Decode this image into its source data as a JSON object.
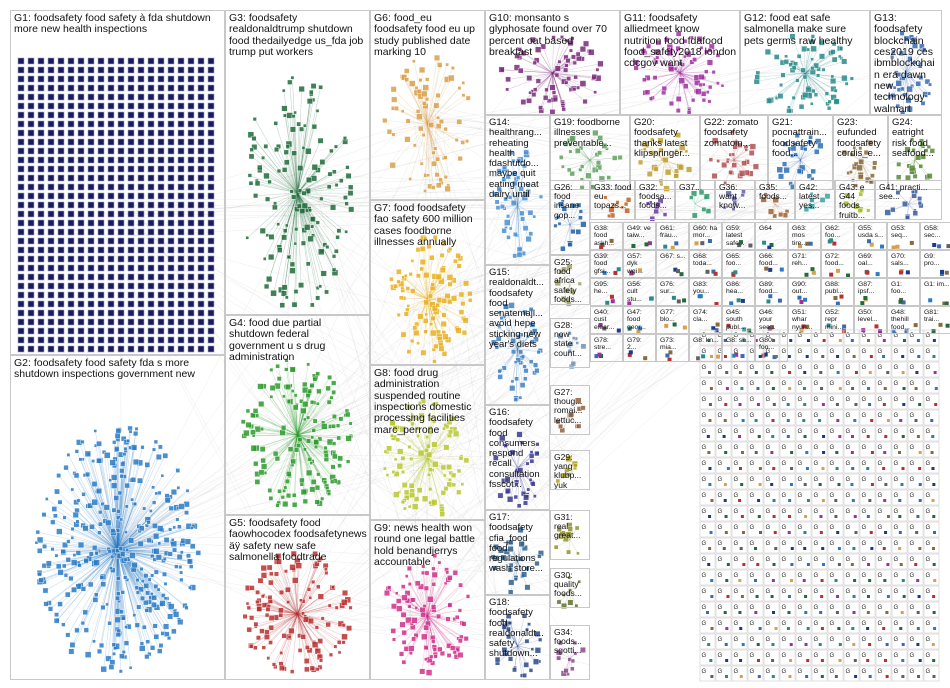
{
  "graph": {
    "groups": [
      {
        "id": "g1",
        "label": "G1: foodsafety food safety à fda shutdown more new health inspections",
        "color": "#1a1a5e",
        "style": "grid"
      },
      {
        "id": "g2",
        "label": "G2: foodsafety food safety fda s more shutdown inspections government new",
        "color": "#2b7bc4",
        "style": "cluster"
      },
      {
        "id": "g3",
        "label": "G3: foodsafety realdonaldtrump shutdown food thedailyedge us_fda job trump put workers",
        "color": "#1f6b3a",
        "style": "sparse"
      },
      {
        "id": "g4",
        "label": "G4: food due partial shutdown federal government u s drug administration",
        "color": "#2e9a2e",
        "style": "cluster"
      },
      {
        "id": "g5",
        "label": "G5: foodsafety food faowhocodex foodsafetynews äÿ safety new safe salmonella foodtrade",
        "color": "#b83030",
        "style": "cluster"
      },
      {
        "id": "g6",
        "label": "G6: food_eu foodsafety food eu up study published date marking 10",
        "color": "#d8a04a",
        "style": "sparse"
      },
      {
        "id": "g7",
        "label": "G7: food foodsafety fao safety 600 million cases foodborne illnesses annually",
        "color": "#e8b020",
        "style": "cluster"
      },
      {
        "id": "g8",
        "label": "G8: food drug administration suspended routine inspections domestic processing facilities marc_perrone",
        "color": "#b8c830",
        "style": "cluster"
      },
      {
        "id": "g9",
        "label": "G9: news health won round one legal battle hold benandjerrys accountable",
        "color": "#d0308a",
        "style": "cluster"
      },
      {
        "id": "g10",
        "label": "G10: monsanto s glyphosate found over 70 percent oat based breakfast",
        "color": "#7a2a7a",
        "style": "cluster"
      },
      {
        "id": "g11",
        "label": "G11: foodsafety alliedmeet know nutrition food fdafood food_safety2018 london cdcgov want",
        "color": "#a030a0",
        "style": "cluster"
      },
      {
        "id": "g12",
        "label": "G12: food eat safe salmonella make sure pets germs raw healthy",
        "color": "#2a8a8a",
        "style": "cluster"
      },
      {
        "id": "g13",
        "label": "G13: foodsafety blockchain ces2019 ces ibmblockchain era dawn new technology walmart",
        "color": "#3a6ab0",
        "style": "cluster"
      },
      {
        "id": "g14",
        "label": "G14: healthrang... reheating health fdashutdo... maybe quit eating meat dairy until",
        "color": "#4a90d0",
        "style": "cluster"
      },
      {
        "id": "g19",
        "label": "G19: foodborne illnesses preventable...",
        "color": "#60a060",
        "style": "cluster"
      },
      {
        "id": "g20",
        "label": "G20: foodsafety thanks latest klipspringer...",
        "color": "#c0a030",
        "style": "cluster"
      },
      {
        "id": "g22",
        "label": "G22: zomato foodsafety zomatoin...",
        "color": "#b05050",
        "style": "cluster"
      },
      {
        "id": "g21",
        "label": "G21: pocnattrain... foodsafety food...",
        "color": "#3070b0",
        "style": "cluster"
      },
      {
        "id": "g23",
        "label": "G23: eufunded foodsafety cordis_e...",
        "color": "#8a6a3a",
        "style": "cluster"
      },
      {
        "id": "g24",
        "label": "G24: eatright risk food seafood...",
        "color": "#5a8a3a",
        "style": "cluster"
      },
      {
        "id": "g26",
        "label": "G26: food insane gop...",
        "color": "#2060a0",
        "style": "cluster"
      },
      {
        "id": "g33",
        "label": "G33: food eu topazs...",
        "color": "#c06020",
        "style": "cluster"
      },
      {
        "id": "g32",
        "label": "G32: foodsa... foods...",
        "color": "#6a3aa0",
        "style": "cluster"
      },
      {
        "id": "g37",
        "label": "G37...",
        "color": "#2a9a6a",
        "style": "cluster"
      },
      {
        "id": "g36",
        "label": "G36: want know...",
        "color": "#6060a0",
        "style": "cluster"
      },
      {
        "id": "g35",
        "label": "G35: foods...",
        "color": "#a06030",
        "style": "cluster"
      },
      {
        "id": "g42",
        "label": "G42: latest yes...",
        "color": "#40a0a0",
        "style": "cluster"
      },
      {
        "id": "g43",
        "label": "G43: e G44 foods fruitb...",
        "color": "#a0c020",
        "style": "cluster"
      },
      {
        "id": "g41",
        "label": "G41: practi... see...",
        "color": "#3a5aa0",
        "style": "cluster"
      },
      {
        "id": "g15",
        "label": "G15: realdonaldt... foodsafety food senatemajl... avoid hepe sticking new year's diets",
        "color": "#4080c0",
        "style": "cluster"
      },
      {
        "id": "g25",
        "label": "G25: food africa safety foods...",
        "color": "#a0a060",
        "style": "cluster"
      },
      {
        "id": "g28",
        "label": "G28: now state count...",
        "color": "#7090b0",
        "style": "cluster"
      },
      {
        "id": "g16",
        "label": "G16: foodsafety food consumers respond recall consultation fsscot...",
        "color": "#3a3a90",
        "style": "cluster"
      },
      {
        "id": "g27",
        "label": "G27: thoug... romai... lettuc...",
        "color": "#906040",
        "style": "cluster"
      },
      {
        "id": "g29",
        "label": "G29: yang klubp... yuk",
        "color": "#b0a020",
        "style": "cluster"
      },
      {
        "id": "g17",
        "label": "G17: foodsafety cfia_food food regulations wash store...",
        "color": "#306090",
        "style": "cluster"
      },
      {
        "id": "g31",
        "label": "G31: real great...",
        "color": "#909030",
        "style": "cluster"
      },
      {
        "id": "g30",
        "label": "G30: quality foods...",
        "color": "#607030",
        "style": "cluster"
      },
      {
        "id": "g18",
        "label": "G18: foodsafety food realdonaldt... safety shutdown...",
        "color": "#2a4a8a",
        "style": "cluster"
      },
      {
        "id": "g34",
        "label": "G34: foods... sgotti...",
        "color": "#8a4a8a",
        "style": "cluster"
      }
    ],
    "small_labels": [
      "G38: food askh...",
      "G49: ve taiw...",
      "G61: frau...",
      "G60: ha mor...",
      "G59: latest safe...",
      "G64",
      "G63: mos tire...",
      "G62: foo...",
      "G55: usda s...",
      "G53: seq...",
      "G58: sec...",
      "G39: food gfsi...",
      "G57: dyk wgi...",
      "G67: s...",
      "G68: toda...",
      "G65: foo...",
      "G66: food...",
      "G71: reh...",
      "G72: food...",
      "G69: oal...",
      "G70: sals...",
      "G9: pro...",
      "G95: he...",
      "G56: cult stu...",
      "G76: sur...",
      "G83: you...",
      "G86: hea...",
      "G89: food...",
      "G90: out...",
      "G88: publ...",
      "G87: ipsf...",
      "G1: foo...",
      "G1: im...",
      "G40: cust elear...",
      "G47: food geor...",
      "G77: blo...",
      "G74: cla...",
      "G45: south publ...",
      "G46: your see...",
      "G51: whar nyun...",
      "G52: repr mini...",
      "G50: level...",
      "G48: thehill food...",
      "G81: trai...",
      "G78: stre...",
      "G79: 2...",
      "G73: mia...",
      "G8: kn...",
      "G8: sh...",
      "G80: foo..."
    ]
  }
}
